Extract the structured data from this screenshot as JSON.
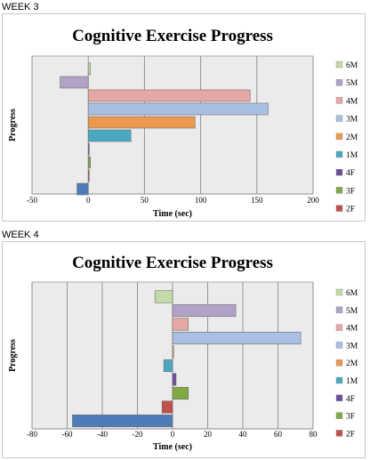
{
  "series_meta": [
    {
      "name": "6M",
      "color": "#c3dba6"
    },
    {
      "name": "5M",
      "color": "#b3a2c7"
    },
    {
      "name": "4M",
      "color": "#e6a8a6"
    },
    {
      "name": "3M",
      "color": "#a9bfe3"
    },
    {
      "name": "2M",
      "color": "#ec9950"
    },
    {
      "name": "1M",
      "color": "#4aa9c0"
    },
    {
      "name": "4F",
      "color": "#6d4e9b"
    },
    {
      "name": "3F",
      "color": "#80a843"
    },
    {
      "name": "2F",
      "color": "#c0504d"
    },
    {
      "name": "1F",
      "color": "#4f7cb8"
    }
  ],
  "chart_data": [
    {
      "type": "bar",
      "week_label": "WEEK 3",
      "title": "Cognitive Exercise Progress",
      "xlabel": "Time (sec)",
      "ylabel": "Progress",
      "xlim": [
        -50,
        200
      ],
      "xticks": [
        "-50",
        "0",
        "50",
        "100",
        "150",
        "200"
      ],
      "grid": true,
      "legend": "right",
      "categories": [
        "6M",
        "5M",
        "4M",
        "3M",
        "2M",
        "1M",
        "4F",
        "3F",
        "2F",
        "1F"
      ],
      "values": [
        2,
        -25,
        144,
        160,
        95,
        38,
        0,
        2,
        0,
        -10
      ],
      "legend_entries": [
        "6M",
        "5M",
        "4M",
        "3M",
        "2M",
        "1M",
        "4F",
        "3F",
        "2F"
      ]
    },
    {
      "type": "bar",
      "week_label": "WEEK 4",
      "title": "Cognitive Exercise Progress",
      "xlabel": "Time (sec)",
      "ylabel": "Progress",
      "xlim": [
        -80,
        80
      ],
      "xticks": [
        "-80",
        "-60",
        "-40",
        "-20",
        "0",
        "20",
        "40",
        "60",
        "80"
      ],
      "grid": true,
      "legend": "right",
      "categories": [
        "6M",
        "5M",
        "4M",
        "3M",
        "2M",
        "1M",
        "4F",
        "3F",
        "2F",
        "1F"
      ],
      "values": [
        -10,
        36,
        9,
        73,
        0,
        -5,
        2,
        9,
        -6,
        -57
      ],
      "legend_entries": [
        "6M",
        "5M",
        "4M",
        "3M",
        "2M",
        "1M",
        "4F",
        "3F",
        "2F"
      ]
    }
  ]
}
